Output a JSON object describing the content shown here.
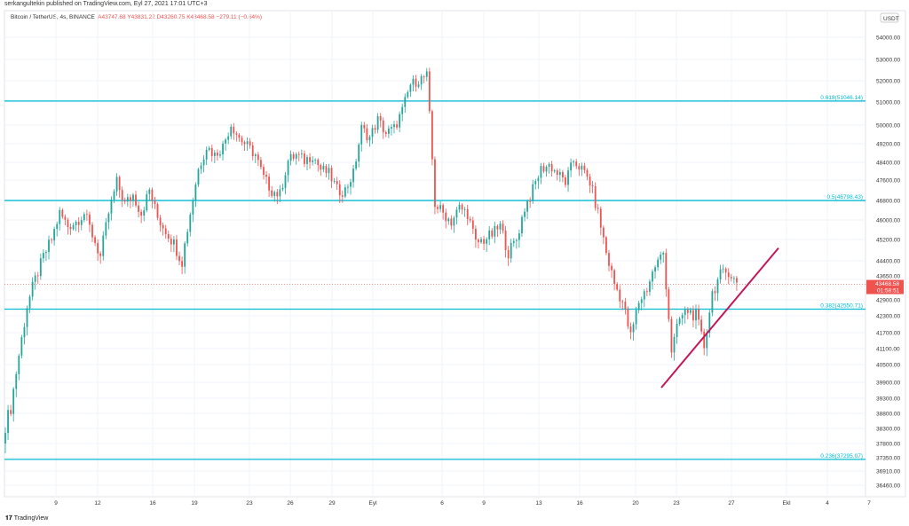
{
  "header": {
    "published": "serkangultekin published on TradingView.com, Eyl 27, 2021 17:01 UTC+3",
    "symbol": "Bitcoin / TetherUS, 4s, BINANCE",
    "open": "A43747.68",
    "high": "Y43831.22",
    "low": "D43260.75",
    "close": "K43468.58",
    "change": "−279.11 (−0.64%)"
  },
  "footer": {
    "brand": "TradingView",
    "logo_icon": "tradingview-logo-icon"
  },
  "colors": {
    "up": "#26a69a",
    "down": "#ef5350",
    "fib": "#00bcd4",
    "trend": "#c2185b",
    "last": "#ef5350"
  },
  "chart_data": {
    "type": "candlestick",
    "currency": "USDT",
    "price_ticks": [
      "54000.00",
      "53000.00",
      "52000.00",
      "51000.00",
      "50000.00",
      "49200.00",
      "48400.00",
      "47600.00",
      "46800.00",
      "46000.00",
      "45200.00",
      "44400.00",
      "43650.00",
      "42900.00",
      "42300.00",
      "41700.00",
      "41100.00",
      "40500.00",
      "39900.00",
      "39300.00",
      "38800.00",
      "38300.00",
      "37800.00",
      "37350.00",
      "36910.00",
      "36460.00"
    ],
    "date_ticks": [
      "9",
      "12",
      "16",
      "19",
      "23",
      "26",
      "29",
      "Eyl",
      "6",
      "9",
      "13",
      "16",
      "20",
      "23",
      "27",
      "Ekl",
      "4",
      "7"
    ],
    "closes": [
      38100,
      39000,
      40860,
      42670,
      43650,
      44540,
      45200,
      46280,
      45750,
      45930,
      46280,
      45400,
      44540,
      46280,
      47525,
      46660,
      47020,
      46280,
      47200,
      46100,
      45580,
      45050,
      44370,
      46280,
      48090,
      49090,
      48720,
      49090,
      50040,
      49460,
      49090,
      48720,
      47710,
      47200,
      47020,
      48470,
      48720,
      48470,
      48720,
      48090,
      47900,
      47200,
      47200,
      47900,
      49850,
      49460,
      50230,
      49650,
      49850,
      50620,
      51820,
      52030,
      52240,
      46660,
      46280,
      45930,
      46500,
      46280,
      45050,
      45200,
      45400,
      45750,
      44700,
      45200,
      46500,
      47200,
      48090,
      48280,
      47900,
      47525,
      48470,
      48090,
      47525,
      46280,
      44700,
      43500,
      42830,
      41540,
      42830,
      43330,
      44190,
      44700,
      41030,
      42180,
      42500,
      42300,
      41190,
      43160,
      43820,
      43990,
      43470
    ],
    "last_price": "43468.58",
    "countdown": "01:58:51",
    "fib_levels": [
      {
        "label": "0.618(51046.14)",
        "price": 51046.14
      },
      {
        "label": "0.5(46798.43)",
        "price": 46798.43
      },
      {
        "label": "0.382(42550.71)",
        "price": 42550.71
      },
      {
        "label": "0.236(37295.07)",
        "price": 37295.07
      }
    ],
    "trendline": {
      "start_price": 39700,
      "end_price": 44880
    }
  }
}
